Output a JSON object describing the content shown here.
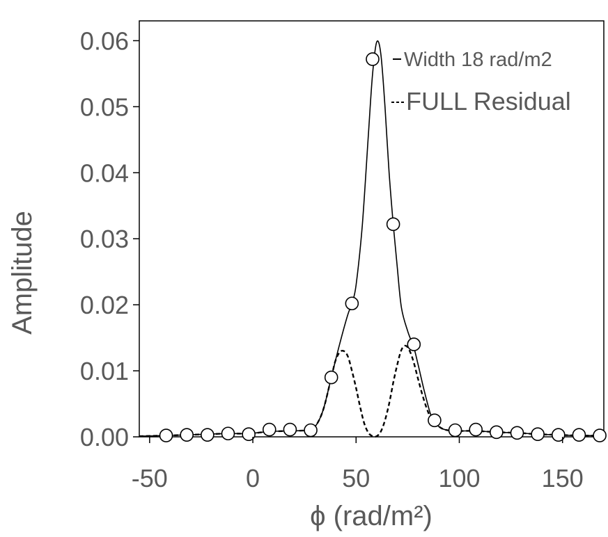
{
  "chart_data": {
    "type": "line",
    "title": "",
    "xlabel": "ϕ (rad/m²)",
    "ylabel": "Amplitude",
    "xlim": [
      -55,
      170
    ],
    "ylim": [
      0,
      0.063
    ],
    "grid": false,
    "legend_position": "top-right",
    "x_ticks": [
      -50,
      0,
      50,
      100,
      150
    ],
    "x_tick_labels": [
      "-50",
      "0",
      "50",
      "100",
      "150"
    ],
    "y_ticks": [
      0,
      0.01,
      0.02,
      0.03,
      0.04,
      0.05,
      0.06
    ],
    "y_tick_labels": [
      "0.00",
      "0.01",
      "0.02",
      "0.03",
      "0.04",
      "0.05",
      "0.06"
    ],
    "legend": [
      {
        "name": "Width 18 rad/m2",
        "style": "solid"
      },
      {
        "name": "FULL Residual",
        "style": "dashed"
      }
    ],
    "series": [
      {
        "name": "Width 18 rad/m2",
        "style": "solid",
        "color": "#000000",
        "x": [
          -55,
          -42,
          -32,
          -22,
          -12,
          -2,
          8,
          18,
          26,
          30,
          34,
          38,
          42,
          46,
          48,
          50,
          53,
          56,
          58,
          60,
          62,
          64,
          66,
          68,
          70,
          72,
          75,
          78,
          80,
          83,
          86,
          88,
          92,
          98,
          108,
          118,
          128,
          138,
          148,
          158,
          170
        ],
        "y": [
          0.0001,
          0.0002,
          0.0003,
          0.0004,
          0.0005,
          0.0005,
          0.0008,
          0.0009,
          0.001,
          0.0015,
          0.004,
          0.009,
          0.014,
          0.0185,
          0.0202,
          0.023,
          0.032,
          0.046,
          0.055,
          0.0598,
          0.058,
          0.05,
          0.04,
          0.0322,
          0.0255,
          0.0195,
          0.016,
          0.0135,
          0.011,
          0.007,
          0.0035,
          0.0022,
          0.0012,
          0.0009,
          0.0009,
          0.0007,
          0.0006,
          0.0004,
          0.0003,
          0.0002,
          0.0002
        ]
      },
      {
        "name": "FULL Residual",
        "style": "dashed",
        "color": "#000000",
        "x": [
          -55,
          -42,
          -32,
          -22,
          -12,
          -2,
          8,
          18,
          26,
          30,
          34,
          38,
          40,
          42,
          44,
          46,
          48,
          50,
          52,
          54,
          56,
          58,
          60,
          62,
          64,
          66,
          68,
          70,
          72,
          74,
          76,
          78,
          80,
          82,
          84,
          86,
          88,
          92,
          98,
          108,
          118,
          128,
          138,
          148,
          158,
          170
        ],
        "y": [
          0.0001,
          0.0002,
          0.0003,
          0.0004,
          0.0005,
          0.0005,
          0.0008,
          0.0009,
          0.001,
          0.0015,
          0.004,
          0.009,
          0.0115,
          0.0128,
          0.013,
          0.0122,
          0.01,
          0.0074,
          0.0045,
          0.002,
          0.0006,
          0.0001,
          0.0001,
          0.0008,
          0.0025,
          0.005,
          0.0082,
          0.011,
          0.0132,
          0.0138,
          0.013,
          0.0112,
          0.0088,
          0.0065,
          0.0045,
          0.003,
          0.0022,
          0.0012,
          0.0009,
          0.0009,
          0.0007,
          0.0006,
          0.0004,
          0.0003,
          0.0002,
          0.0002
        ]
      },
      {
        "name": "markers",
        "style": "markers",
        "x": [
          -42,
          -32,
          -22,
          -12,
          -2,
          8,
          18,
          28,
          38,
          48,
          58,
          68,
          78,
          88,
          98,
          108,
          118,
          128,
          138,
          148,
          158,
          168
        ],
        "y": [
          0.0002,
          0.0003,
          0.0003,
          0.0005,
          0.0004,
          0.0011,
          0.0011,
          0.001,
          0.009,
          0.0202,
          0.0572,
          0.0322,
          0.014,
          0.0025,
          0.001,
          0.0011,
          0.0007,
          0.0006,
          0.0004,
          0.0003,
          0.0003,
          0.0002
        ]
      }
    ]
  }
}
